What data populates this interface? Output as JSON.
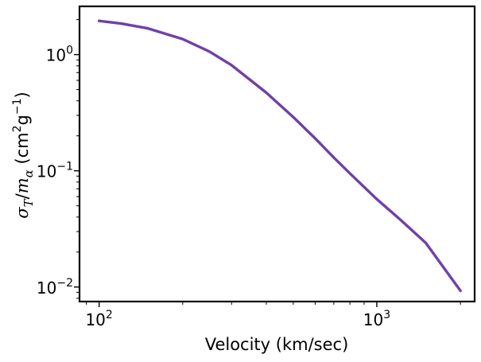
{
  "chart_data": {
    "type": "line",
    "title": "",
    "xlabel": "Velocity (km/sec)",
    "ylabel": {
      "sigma": "σ",
      "sigma_sub": "T",
      "slash": "/",
      "m": "m",
      "m_sub": "α",
      "units_open": " (cm",
      "units_cm_exp": "2",
      "units_g": "g",
      "units_g_exp": "−1",
      "units_close": ")"
    },
    "xscale": "log",
    "yscale": "log",
    "xlim": [
      85,
      2250
    ],
    "ylim": [
      0.0075,
      2.6
    ],
    "x_ticks": [
      {
        "value": 100,
        "base": "10",
        "exp": "2"
      },
      {
        "value": 1000,
        "base": "10",
        "exp": "3"
      }
    ],
    "y_ticks": [
      {
        "value": 1,
        "base": "10",
        "exp": "0"
      },
      {
        "value": 0.1,
        "base": "10",
        "exp": "−1"
      },
      {
        "value": 0.01,
        "base": "10",
        "exp": "−2"
      }
    ],
    "grid": false,
    "series": [
      {
        "name": "sigma_T over m_alpha",
        "color": "#7040a8",
        "x": [
          100,
          120,
          150,
          200,
          250,
          300,
          400,
          500,
          600,
          700,
          800,
          1000,
          1200,
          1500,
          2000
        ],
        "y": [
          1.95,
          1.85,
          1.68,
          1.36,
          1.06,
          0.81,
          0.47,
          0.29,
          0.19,
          0.13,
          0.095,
          0.057,
          0.039,
          0.024,
          0.0093
        ]
      }
    ]
  }
}
